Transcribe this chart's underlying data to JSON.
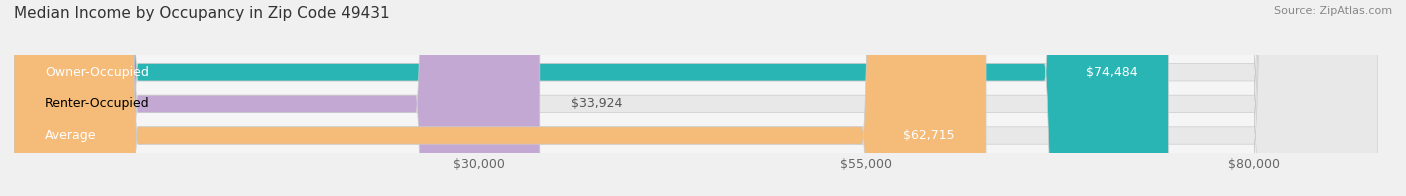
{
  "title": "Median Income by Occupancy in Zip Code 49431",
  "source": "Source: ZipAtlas.com",
  "categories": [
    "Owner-Occupied",
    "Renter-Occupied",
    "Average"
  ],
  "values": [
    74484,
    33924,
    62715
  ],
  "bar_colors": [
    "#2ab5b5",
    "#c4a8d4",
    "#f5bb78"
  ],
  "bar_labels": [
    "$74,484",
    "$33,924",
    "$62,715"
  ],
  "label_inside": [
    true,
    false,
    true
  ],
  "x_ticks": [
    30000,
    55000,
    80000
  ],
  "x_tick_labels": [
    "$30,000",
    "$55,000",
    "$80,000"
  ],
  "xlim": [
    0,
    88000
  ],
  "background_color": "#f5f5f5",
  "bar_background_color": "#e8e8e8",
  "title_fontsize": 11,
  "source_fontsize": 8,
  "label_fontsize": 9,
  "category_fontsize": 9,
  "tick_fontsize": 9,
  "bar_height": 0.55,
  "bar_edge_color": "#cccccc"
}
